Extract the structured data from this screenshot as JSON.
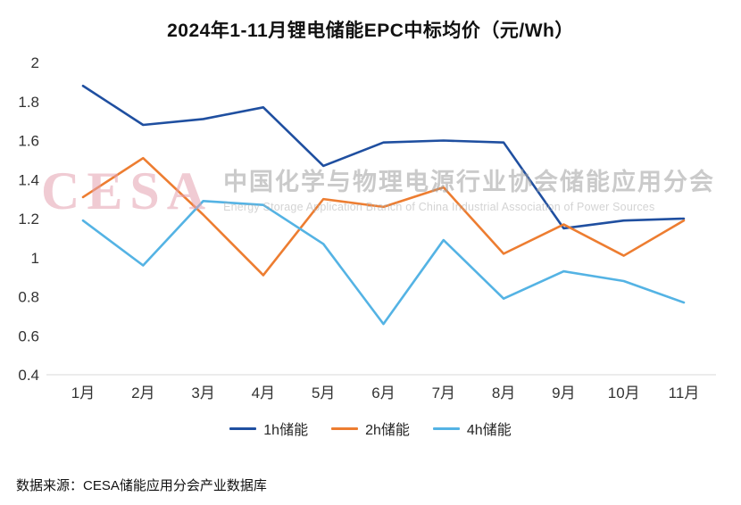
{
  "title": "2024年1-11月锂电储能EPC中标均价（元/Wh）",
  "source_note": "数据来源：CESA储能应用分会产业数据库",
  "watermark": {
    "logo": "CESA",
    "cn": "中国化学与物理电源行业协会储能应用分会",
    "en": "Energy Storage Application Branch of China Industrial Association of Power Sources"
  },
  "chart_data": {
    "type": "line",
    "title": "2024年1-11月锂电储能EPC中标均价（元/Wh）",
    "categories": [
      "1月",
      "2月",
      "3月",
      "4月",
      "5月",
      "6月",
      "7月",
      "8月",
      "9月",
      "10月",
      "11月"
    ],
    "series": [
      {
        "name": "1h储能",
        "color": "#1F4FA0",
        "values": [
          1.88,
          1.68,
          1.71,
          1.77,
          1.47,
          1.59,
          1.6,
          1.59,
          1.15,
          1.19,
          1.2
        ]
      },
      {
        "name": "2h储能",
        "color": "#ED7D31",
        "values": [
          1.31,
          1.51,
          1.22,
          0.91,
          1.3,
          1.26,
          1.36,
          1.02,
          1.17,
          1.01,
          1.19
        ]
      },
      {
        "name": "4h储能",
        "color": "#54B3E4",
        "values": [
          1.19,
          0.96,
          1.29,
          1.27,
          1.07,
          0.66,
          1.09,
          0.79,
          0.93,
          0.88,
          0.77
        ]
      }
    ],
    "ylim": [
      0.4,
      2.0
    ],
    "ytick_step": 0.2,
    "yticks": [
      "2",
      "1.8",
      "1.6",
      "1.4",
      "1.2",
      "1",
      "0.8",
      "0.6",
      "0.4"
    ],
    "xlabel": "",
    "ylabel": "",
    "grid": false,
    "legend_position": "bottom"
  }
}
